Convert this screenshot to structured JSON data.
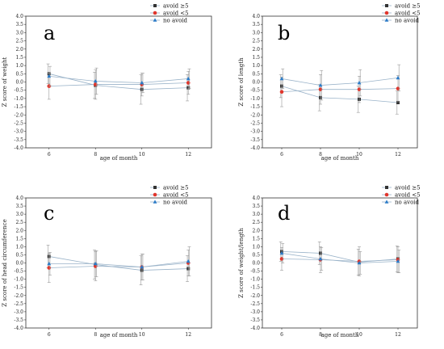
{
  "colors": {
    "avoid_ge5": "#333333",
    "avoid_lt5": "#e0362c",
    "no_avoid": "#2b7bc8",
    "line": "#9ab3c9"
  },
  "chart_data": [
    {
      "type": "line",
      "panel": "a",
      "xlabel": "age of month",
      "ylabel": "Z score of weight",
      "x": [
        6,
        8,
        10,
        12
      ],
      "ylim": [
        -4.0,
        4.0
      ],
      "yticks": [
        "4.0",
        "3.5",
        "3.0",
        "2.5",
        "2.0",
        "1.5",
        "1.0",
        "0.5",
        "0.0",
        "-0.5",
        "-1.0",
        "-1.5",
        "-2.0",
        "-2.5",
        "-3.0",
        "-3.5",
        "-4.0"
      ],
      "legend": "top-right",
      "series": [
        {
          "name": "avoid ≥5",
          "values": [
            0.5,
            -0.2,
            -0.45,
            -0.35
          ],
          "err": [
            0.6,
            0.8,
            0.9,
            0.8
          ]
        },
        {
          "name": "avoid <5",
          "values": [
            -0.25,
            -0.15,
            -0.15,
            -0.05
          ],
          "err": [
            0.8,
            0.9,
            0.7,
            0.7
          ]
        },
        {
          "name": "no avoid",
          "values": [
            0.35,
            0.05,
            -0.05,
            0.2
          ],
          "err": [
            0.6,
            0.8,
            0.6,
            0.6
          ]
        }
      ]
    },
    {
      "type": "line",
      "panel": "b",
      "xlabel": "age of month",
      "ylabel": "Z score of length",
      "x": [
        6,
        8,
        10,
        12
      ],
      "ylim": [
        -4.0,
        4.0
      ],
      "yticks": [
        "4.0",
        "3.5",
        "3.0",
        "2.5",
        "2.0",
        "1.5",
        "1.0",
        "0.5",
        "0.0",
        "-0.5",
        "-1.0",
        "-1.5",
        "-2.0",
        "-2.5",
        "-3.0",
        "-3.5",
        "-4.0"
      ],
      "legend": "top-right",
      "series": [
        {
          "name": "avoid ≥5",
          "values": [
            -0.25,
            -0.95,
            -1.05,
            -1.25
          ],
          "err": [
            0.7,
            0.8,
            0.8,
            0.7
          ]
        },
        {
          "name": "avoid <5",
          "values": [
            -0.6,
            -0.45,
            -0.45,
            -0.4
          ],
          "err": [
            0.9,
            0.9,
            0.8,
            0.8
          ]
        },
        {
          "name": "no avoid",
          "values": [
            0.2,
            -0.2,
            -0.05,
            0.25
          ],
          "err": [
            0.6,
            0.9,
            0.8,
            0.8
          ]
        }
      ]
    },
    {
      "type": "line",
      "panel": "c",
      "xlabel": "age of month",
      "ylabel": "Z score of head circumference",
      "x": [
        6,
        8,
        10,
        12
      ],
      "ylim": [
        -4.0,
        4.0
      ],
      "yticks": [
        "4.0",
        "3.5",
        "3.0",
        "2.5",
        "2.0",
        "1.5",
        "1.0",
        "0.5",
        "0.0",
        "-0.5",
        "-1.0",
        "-1.5",
        "-2.0",
        "-2.5",
        "-3.0",
        "-3.5",
        "-4.0"
      ],
      "legend": "top-right",
      "series": [
        {
          "name": "avoid ≥5",
          "values": [
            0.4,
            -0.1,
            -0.45,
            -0.35
          ],
          "err": [
            0.7,
            0.9,
            0.9,
            0.8
          ]
        },
        {
          "name": "avoid <5",
          "values": [
            -0.3,
            -0.2,
            -0.25,
            0.0
          ],
          "err": [
            0.9,
            0.9,
            0.8,
            0.8
          ]
        },
        {
          "name": "no avoid",
          "values": [
            -0.05,
            -0.05,
            -0.25,
            0.1
          ],
          "err": [
            0.7,
            0.8,
            0.8,
            0.9
          ]
        }
      ]
    },
    {
      "type": "line",
      "panel": "d",
      "xlabel": "age of month",
      "ylabel": "Z score of weight/length",
      "x": [
        6,
        8,
        10,
        12
      ],
      "ylim": [
        -4.0,
        4.0
      ],
      "yticks": [
        "4.0",
        "3.5",
        "3.0",
        "2.5",
        "2.0",
        "1.5",
        "1.0",
        "0.5",
        "0.0",
        "-0.5",
        "-1.0",
        "-1.5",
        "-2.0",
        "-2.5",
        "-3.0",
        "-3.5",
        "-4.0"
      ],
      "legend": "top-right",
      "series": [
        {
          "name": "avoid ≥5",
          "values": [
            0.7,
            0.6,
            0.05,
            0.25
          ],
          "err": [
            0.6,
            0.7,
            0.8,
            0.8
          ]
        },
        {
          "name": "avoid <5",
          "values": [
            0.25,
            0.2,
            0.1,
            0.2
          ],
          "err": [
            0.7,
            0.8,
            0.9,
            0.8
          ]
        },
        {
          "name": "no avoid",
          "values": [
            0.6,
            0.25,
            0.0,
            0.1
          ],
          "err": [
            0.6,
            0.7,
            0.7,
            0.7
          ]
        }
      ]
    }
  ]
}
